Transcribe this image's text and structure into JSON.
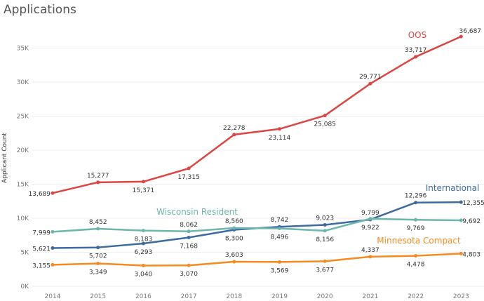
{
  "chart_data": {
    "type": "line",
    "title": "Applications",
    "xlabel": "",
    "ylabel": "Applicant Count",
    "ylim": [
      0,
      37000
    ],
    "yticks": [
      "0K",
      "5K",
      "10K",
      "15K",
      "20K",
      "25K",
      "30K",
      "35K"
    ],
    "ytick_values": [
      0,
      5000,
      10000,
      15000,
      20000,
      25000,
      30000,
      35000
    ],
    "grid": true,
    "categories": [
      "2014",
      "2015",
      "2016",
      "2017",
      "2018",
      "2019",
      "2020",
      "2021",
      "2022",
      "2023"
    ],
    "series": [
      {
        "name": "OOS",
        "color": "#dc4541",
        "values": [
          13689,
          15277,
          15371,
          17315,
          22278,
          23114,
          25085,
          29771,
          33717,
          36687
        ],
        "labels": [
          "13,689",
          "15,277",
          "15,371",
          "17,315",
          "22,278",
          "23,114",
          "25,085",
          "29,771",
          "33,717",
          "36,687"
        ]
      },
      {
        "name": "International",
        "color": "#3e6b9f",
        "values": [
          5621,
          5702,
          6293,
          7168,
          8300,
          8742,
          9023,
          9799,
          12296,
          12355
        ],
        "labels": [
          "5,621",
          "5,702",
          "6,293",
          "7,168",
          "8,300",
          "8,742",
          "9,023",
          "9,799",
          "12,296",
          "12,355"
        ]
      },
      {
        "name": "Wisconsin Resident",
        "color": "#6cb6ad",
        "values": [
          7999,
          8452,
          8183,
          8062,
          8560,
          8496,
          8156,
          9922,
          9769,
          9692
        ],
        "labels": [
          "7,999",
          "8,452",
          "8,183",
          "8,062",
          "8,560",
          "8,496",
          "8,156",
          "9,922",
          "9,769",
          "9,692"
        ]
      },
      {
        "name": "Minnesota Compact",
        "color": "#f58b1f",
        "values": [
          3155,
          3349,
          3040,
          3070,
          3603,
          3569,
          3677,
          4337,
          4478,
          4803
        ],
        "labels": [
          "3,155",
          "3,349",
          "3,040",
          "3,070",
          "3,603",
          "3,569",
          "3,677",
          "4,337",
          "4,478",
          "4,803"
        ]
      }
    ]
  }
}
